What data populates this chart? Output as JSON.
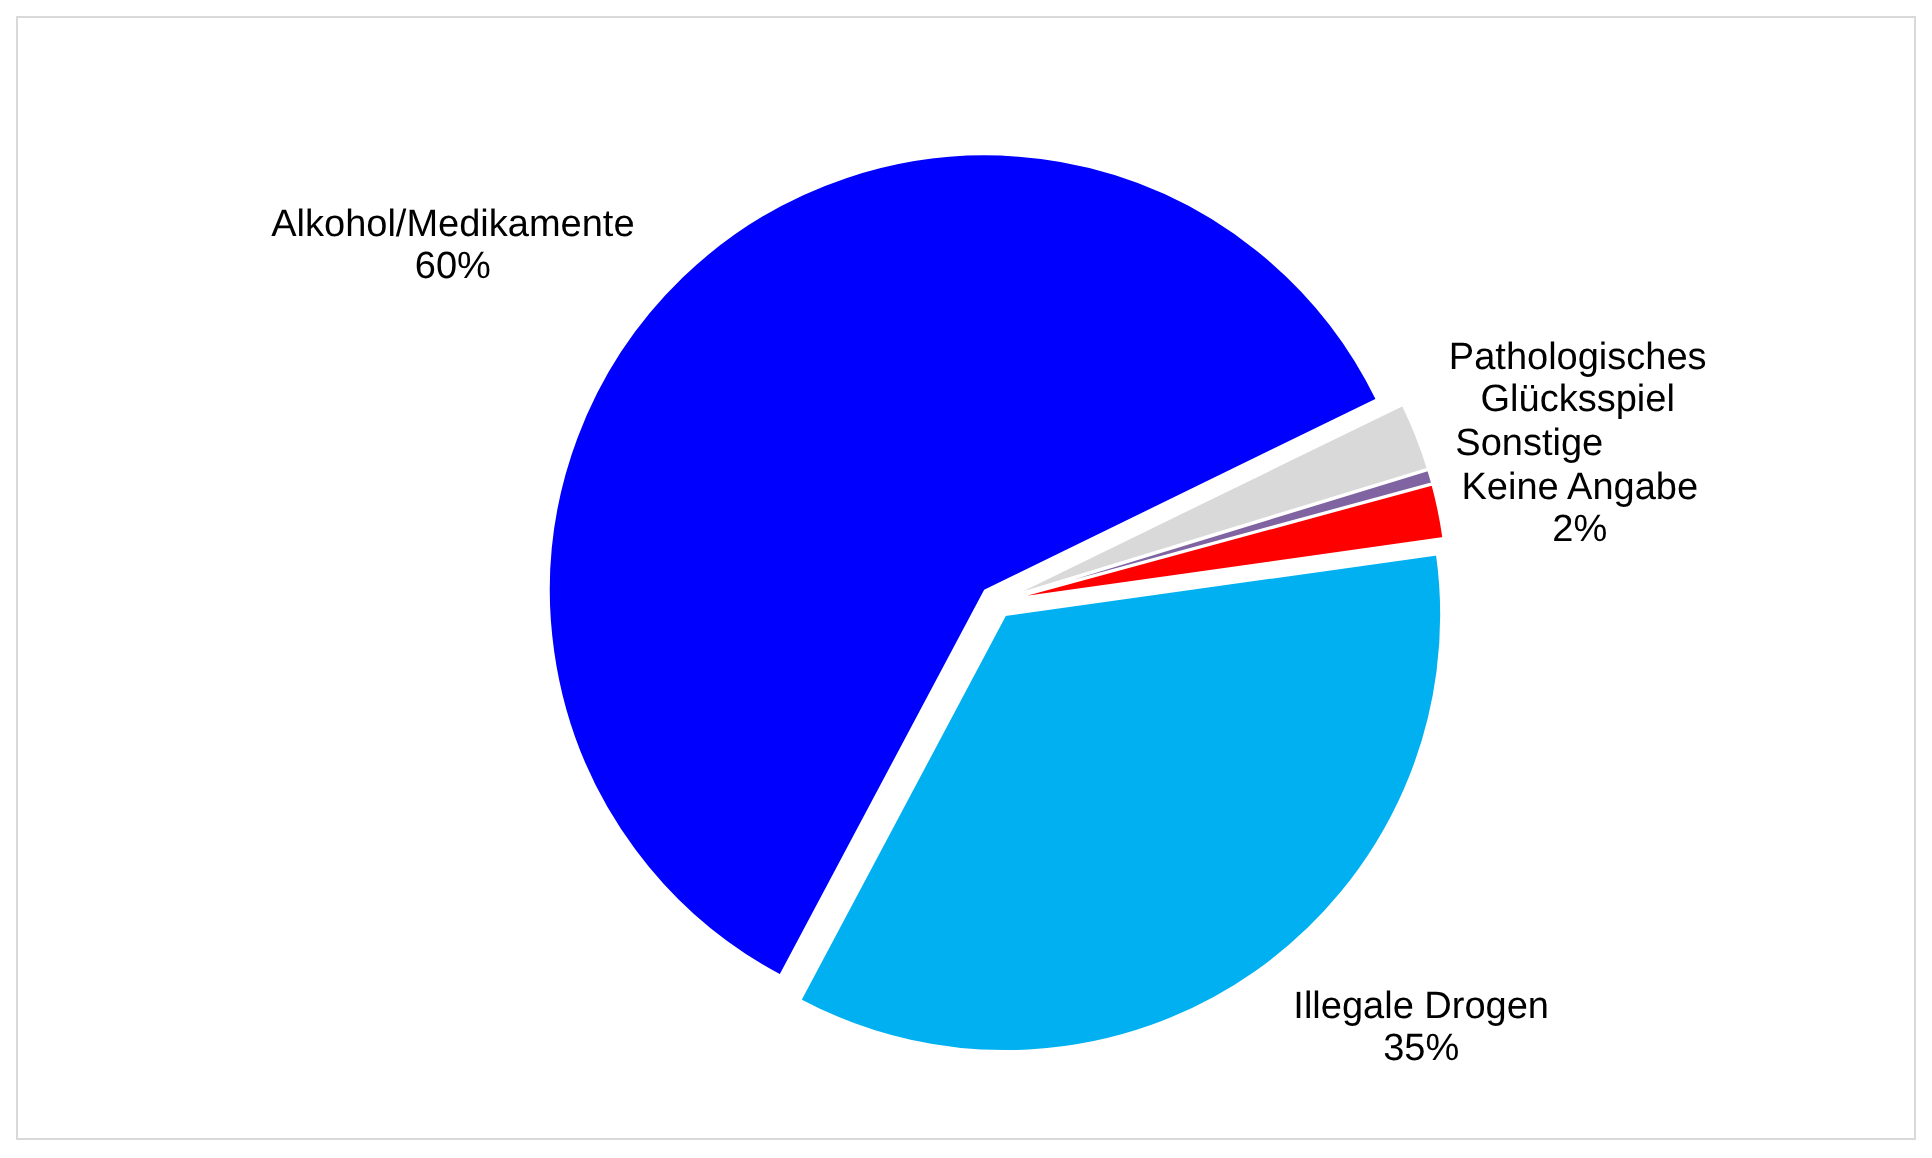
{
  "chart_data": {
    "type": "pie",
    "categories": [
      "Alkohol/Medikamente",
      "Pathologisches Glücksspiel",
      "Sonstige",
      "Keine Angabe",
      "Illegale Drogen"
    ],
    "values": [
      60,
      2.5,
      0.5,
      2,
      35
    ],
    "colors": [
      "#0000ff",
      "#d9d9d9",
      "#8064a2",
      "#ff0000",
      "#00b0f0"
    ],
    "value_labels": [
      "60%",
      null,
      null,
      "2%",
      "35%"
    ]
  }
}
